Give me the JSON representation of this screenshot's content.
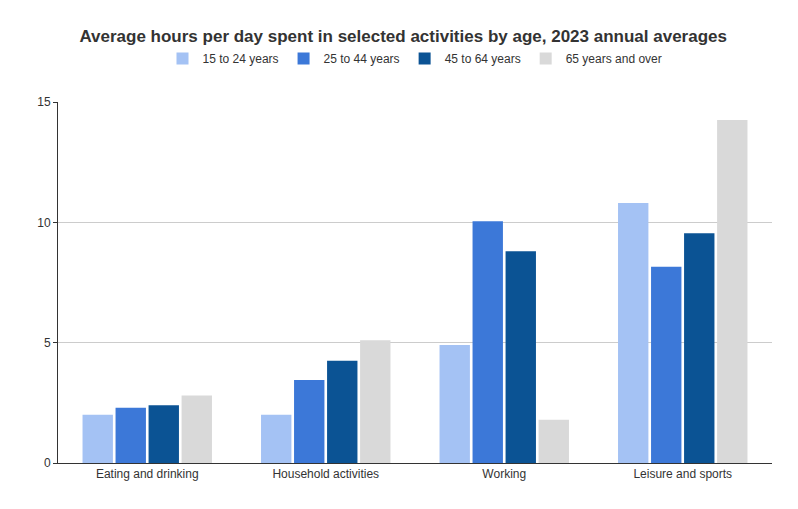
{
  "chart_data": {
    "type": "bar",
    "title": "Average hours per day spent in selected activities by age, 2023 annual averages",
    "categories": [
      "Eating and drinking",
      "Household activities",
      "Working",
      "Leisure and sports"
    ],
    "series": [
      {
        "name": "15 to 24 years",
        "color": "#a4c2f4",
        "values": [
          2.0,
          2.0,
          4.9,
          10.8
        ]
      },
      {
        "name": "25 to 44 years",
        "color": "#3c78d8",
        "values": [
          2.3,
          3.45,
          10.05,
          8.15
        ]
      },
      {
        "name": "45 to 64 years",
        "color": "#0b5394",
        "values": [
          2.4,
          4.25,
          8.8,
          9.55
        ]
      },
      {
        "name": "65 years and over",
        "color": "#d9d9d9",
        "values": [
          2.8,
          5.1,
          1.8,
          14.25
        ]
      }
    ],
    "ylim": [
      0,
      15
    ],
    "yticks": [
      0,
      5,
      10,
      15
    ],
    "grid": true,
    "legend": "top"
  }
}
